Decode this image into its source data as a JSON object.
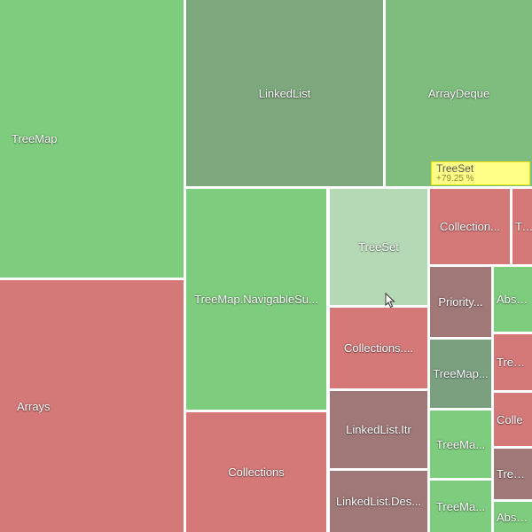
{
  "colors": {
    "green": "#7ecd7e",
    "green_dark": "#7da87d",
    "green_muted": "#7ebd7e",
    "green_pale": "#b4d9b4",
    "red": "#d57878",
    "red_dark": "#a07878",
    "red_muted": "#b08080",
    "gray_green": "#7aa080",
    "tooltip_bg": "#ffff88",
    "separator": "#ffffff"
  },
  "tiles": [
    {
      "id": "treemap-main",
      "label": "TreeMap",
      "color": "green"
    },
    {
      "id": "arrays",
      "label": "Arrays",
      "color": "red"
    },
    {
      "id": "linkedlist",
      "label": "LinkedList",
      "color": "green_dark"
    },
    {
      "id": "arraydeque",
      "label": "ArrayDeque",
      "color": "green_muted"
    },
    {
      "id": "treemap-navigablesubmap",
      "label": "TreeMap.NavigableSu...",
      "color": "green"
    },
    {
      "id": "collections",
      "label": "Collections",
      "color": "red"
    },
    {
      "id": "treeset",
      "label": "TreeSet",
      "color": "green_pale"
    },
    {
      "id": "collections-2",
      "label": "Collections....",
      "color": "red"
    },
    {
      "id": "linkedlist-itr",
      "label": "LinkedList.Itr",
      "color": "red_dark"
    },
    {
      "id": "linkedlist-des",
      "label": "LinkedList.Des...",
      "color": "red_dark"
    },
    {
      "id": "collection-top",
      "label": "Collection...",
      "color": "red"
    },
    {
      "id": "tre-top",
      "label": "Tre",
      "color": "red"
    },
    {
      "id": "priority",
      "label": "Priority...",
      "color": "red_dark"
    },
    {
      "id": "abstra-1",
      "label": "Abstra",
      "color": "green"
    },
    {
      "id": "treemap-small-1",
      "label": "TreeMap...",
      "color": "gray_green"
    },
    {
      "id": "treem-side-1",
      "label": "TreeM",
      "color": "red"
    },
    {
      "id": "treema-1",
      "label": "TreeMa...",
      "color": "green"
    },
    {
      "id": "colle-side",
      "label": "Colle",
      "color": "red"
    },
    {
      "id": "treema-2",
      "label": "TreeMa...",
      "color": "green"
    },
    {
      "id": "treem-side-2",
      "label": "TreeM",
      "color": "red_dark"
    },
    {
      "id": "abstra-2",
      "label": "Abstra",
      "color": "green"
    }
  ],
  "tooltip": {
    "title": "TreeSet",
    "value": "+79.25 %"
  }
}
